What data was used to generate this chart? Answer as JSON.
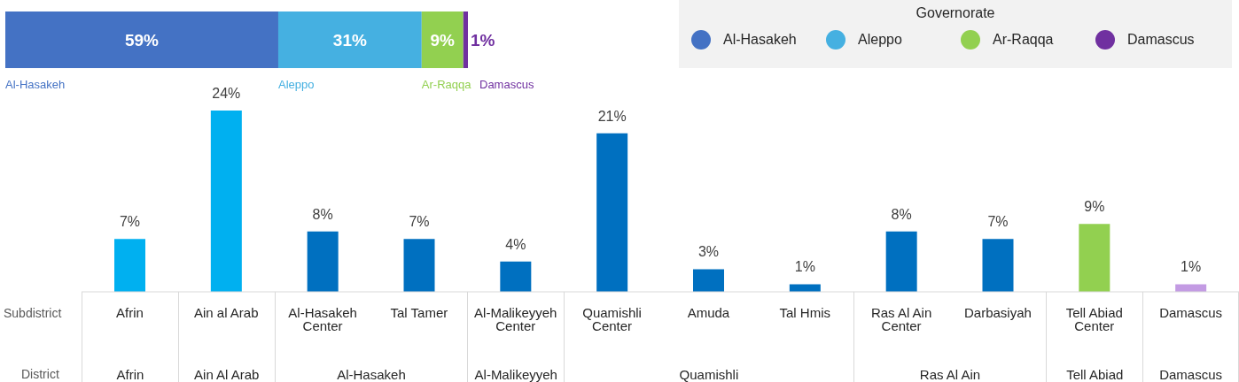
{
  "chart_data": [
    {
      "type": "bar",
      "orientation": "horizontal",
      "stacked": true,
      "categories": [
        null
      ],
      "legend": "top right",
      "legend_title": "Governorate",
      "series": [
        {
          "name": "Al-Hasakeh",
          "color": "#4472c4",
          "values": [
            59
          ],
          "value_labels": [
            "59%"
          ]
        },
        {
          "name": "Aleppo",
          "color": "#45b0e1",
          "values": [
            31
          ],
          "value_labels": [
            "31%"
          ]
        },
        {
          "name": "Ar-Raqqa",
          "color": "#92d050",
          "values": [
            9
          ],
          "value_labels": [
            "9%"
          ]
        },
        {
          "name": "Damascus",
          "color": "#7030a0",
          "values": [
            1
          ],
          "value_labels": [
            "1%"
          ]
        }
      ]
    },
    {
      "type": "bar",
      "categories": [
        "Afrin",
        "Ain al Arab",
        "Al-Hasakeh Center",
        "Tal Tamer",
        "Al-Malikeyyeh Center",
        "Quamishli Center",
        "Amuda",
        "Tal Hmis",
        "Ras Al Ain Center",
        "Darbasiyah",
        "Tell Abiad Center",
        "Damascus"
      ],
      "values": [
        7,
        24,
        8,
        7,
        4,
        21,
        3,
        1,
        8,
        7,
        9,
        1
      ],
      "value_labels": [
        "7%",
        "24%",
        "8%",
        "7%",
        "4%",
        "21%",
        "3%",
        "1%",
        "8%",
        "7%",
        "9%",
        "1%"
      ],
      "colors": [
        "#00b0f0",
        "#00b0f0",
        "#0070c0",
        "#0070c0",
        "#0070c0",
        "#0070c0",
        "#0070c0",
        "#0070c0",
        "#0070c0",
        "#0070c0",
        "#92d050",
        "#c39be3"
      ],
      "annotations": [
        "Subdistrict",
        "District",
        "Afrin",
        "Ain Al Arab",
        "Al-Hasakeh",
        "Al-Malikeyyeh",
        "Quamishli",
        "Ras Al Ain",
        "Tell Abiad",
        "Damascus"
      ]
    }
  ]
}
